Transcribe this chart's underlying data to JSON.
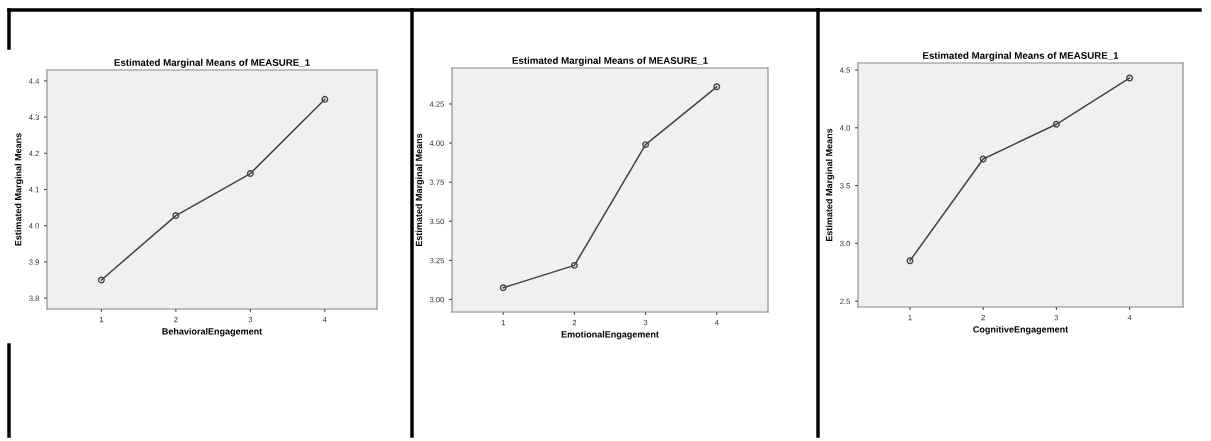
{
  "chart_data": [
    {
      "type": "line",
      "title": "Estimated Marginal Means of MEASURE_1",
      "xlabel": "BehavioralEngagement",
      "ylabel": "Estimated Marginal Means",
      "x": [
        1,
        2,
        3,
        4
      ],
      "xlim": [
        0.27,
        4.7
      ],
      "xticks": [
        1,
        2,
        3,
        4
      ],
      "ylim": [
        3.77,
        4.43
      ],
      "yticks": [
        3.8,
        3.9,
        {
          "value": 4.0,
          "label": "4.0"
        },
        4.1,
        4.2,
        4.3,
        4.4
      ],
      "marker": "circle",
      "line_style": "solid",
      "grid": false,
      "series": [
        {
          "color": "#444444",
          "values": [
            3.85,
            4.028,
            4.144,
            4.349
          ]
        }
      ]
    },
    {
      "type": "line",
      "title": "Estimated Marginal Means of MEASURE_1",
      "xlabel": "EmotionalEngagement",
      "ylabel": "Estimated Marginal Means",
      "x": [
        1,
        2,
        3,
        4
      ],
      "xlim": [
        0.28,
        4.72
      ],
      "xticks": [
        1,
        2,
        3,
        4
      ],
      "ylim": [
        2.92,
        4.48
      ],
      "yticks": [
        {
          "value": 3.0,
          "label": "3.00"
        },
        {
          "value": 3.25,
          "label": "3.25"
        },
        {
          "value": 3.5,
          "label": "3.50"
        },
        {
          "value": 3.75,
          "label": "3.75"
        },
        {
          "value": 4.0,
          "label": "4.00"
        },
        {
          "value": 4.25,
          "label": "4.25"
        }
      ],
      "marker": "circle",
      "line_style": "solid",
      "grid": false,
      "series": [
        {
          "color": "#444444",
          "values": [
            3.075,
            3.218,
            3.99,
            4.36
          ]
        }
      ]
    },
    {
      "type": "line",
      "title": "Estimated Marginal Means of MEASURE_1",
      "xlabel": "CognitiveEngagement",
      "ylabel": "Estimated Marginal Means",
      "x": [
        1,
        2,
        3,
        4
      ],
      "xlim": [
        0.29,
        4.73
      ],
      "xticks": [
        1,
        2,
        3,
        4
      ],
      "ylim": [
        2.45,
        4.56
      ],
      "yticks": [
        2.5,
        {
          "value": 3.0,
          "label": "3.0"
        },
        3.5,
        {
          "value": 4.0,
          "label": "4.0"
        },
        4.5
      ],
      "marker": "circle",
      "line_style": "solid",
      "grid": false,
      "series": [
        {
          "color": "#444444",
          "values": [
            2.85,
            3.73,
            4.03,
            4.43
          ]
        }
      ]
    }
  ]
}
